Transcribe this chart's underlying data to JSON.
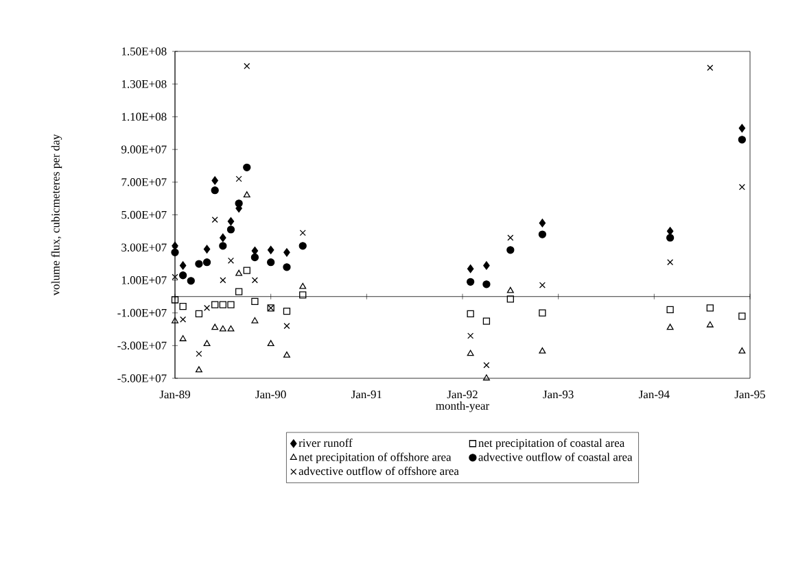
{
  "chart_data": {
    "type": "scatter",
    "xlabel": "month-year",
    "ylabel": "volume flux, cubicmeteres per day",
    "x": [
      "1989-01",
      "1989-02",
      "1989-03",
      "1989-04",
      "1989-05",
      "1989-06",
      "1989-07",
      "1989-08",
      "1989-09",
      "1989-10",
      "1989-11",
      "1990-01",
      "1990-03",
      "1990-05",
      "1992-02",
      "1992-04",
      "1992-07",
      "1992-11",
      "1994-03",
      "1994-08",
      "1994-12"
    ],
    "series": [
      {
        "name": "river runoff",
        "color": "#000000",
        "marker": "diamond",
        "values": [
          31000000.0,
          19000000.0,
          null,
          null,
          29000000.0,
          71000000.0,
          36000000.0,
          46000000.0,
          54000000.0,
          null,
          28000000.0,
          28500000.0,
          27000000.0,
          null,
          17000000.0,
          19000000.0,
          null,
          45000000.0,
          40000000.0,
          null,
          103000000.0
        ]
      },
      {
        "name": "net precipitation of coastal area",
        "color": "#000000",
        "marker": "square",
        "values": [
          -2000000.0,
          -6000000.0,
          null,
          -10500000.0,
          null,
          -5000000.0,
          -5000000.0,
          -5000000.0,
          3000000.0,
          16000000.0,
          -3000000.0,
          -7000000.0,
          -9000000.0,
          1000000.0,
          -10500000.0,
          -15000000.0,
          -1500000.0,
          -10000000.0,
          -8000000.0,
          -7000000.0,
          -12000000.0
        ]
      },
      {
        "name": "net precipitation of offshore area",
        "color": "#000000",
        "marker": "triangle",
        "values": [
          -15000000.0,
          -26000000.0,
          null,
          -45000000.0,
          -29000000.0,
          -19000000.0,
          -20000000.0,
          -20000000.0,
          14000000.0,
          62000000.0,
          -15000000.0,
          -29000000.0,
          -36000000.0,
          6000000.0,
          -35000000.0,
          -50000000.0,
          3500000.0,
          -33500000.0,
          -19000000.0,
          -17500000.0,
          -33500000.0
        ]
      },
      {
        "name": "advective outflow of coastal area",
        "color": "#000000",
        "marker": "circle",
        "values": [
          27000000.0,
          13000000.0,
          9600000.0,
          20000000.0,
          21000000.0,
          65000000.0,
          31000000.0,
          41000000.0,
          57000000.0,
          79000000.0,
          24000000.0,
          21000000.0,
          18000000.0,
          31000000.0,
          9000000.0,
          7500000.0,
          28500000.0,
          38000000.0,
          36000000.0,
          null,
          96000000.0
        ]
      },
      {
        "name": "advective outflow of offshore area",
        "color": "#000000",
        "marker": "cross",
        "values": [
          12000000.0,
          -14000000.0,
          null,
          -35000000.0,
          -7000000.0,
          47000000.0,
          10000000.0,
          22000000.0,
          72000000.0,
          141000000.0,
          10000000.0,
          -7000000.0,
          -18000000.0,
          39000000.0,
          -24000000.0,
          -42000000.0,
          36000000.0,
          7000000.0,
          21000000.0,
          140000000.0,
          67000000.0
        ]
      }
    ],
    "xlim": [
      "1989-01",
      "1995-01"
    ],
    "xticks": [
      {
        "value": "1989-01",
        "label": "Jan-89"
      },
      {
        "value": "1990-01",
        "label": "Jan-90"
      },
      {
        "value": "1991-01",
        "label": "Jan-91"
      },
      {
        "value": "1992-01",
        "label": "Jan-92"
      },
      {
        "value": "1993-01",
        "label": "Jan-93"
      },
      {
        "value": "1994-01",
        "label": "Jan-94"
      },
      {
        "value": "1995-01",
        "label": "Jan-95"
      }
    ],
    "ylim": [
      -50000000.0,
      150000000.0
    ],
    "yticks": [
      {
        "value": -50000000.0,
        "label": "-5.00E+07"
      },
      {
        "value": -30000000.0,
        "label": "-3.00E+07"
      },
      {
        "value": -10000000.0,
        "label": "-1.00E+07"
      },
      {
        "value": 10000000.0,
        "label": "1.00E+07"
      },
      {
        "value": 30000000.0,
        "label": "3.00E+07"
      },
      {
        "value": 50000000.0,
        "label": "5.00E+07"
      },
      {
        "value": 70000000.0,
        "label": "7.00E+07"
      },
      {
        "value": 90000000.0,
        "label": "9.00E+07"
      },
      {
        "value": 110000000.0,
        "label": "1.10E+08"
      },
      {
        "value": 130000000.0,
        "label": "1.30E+08"
      },
      {
        "value": 150000000.0,
        "label": "1.50E+08"
      }
    ],
    "grid": false,
    "legend": "bottom"
  }
}
